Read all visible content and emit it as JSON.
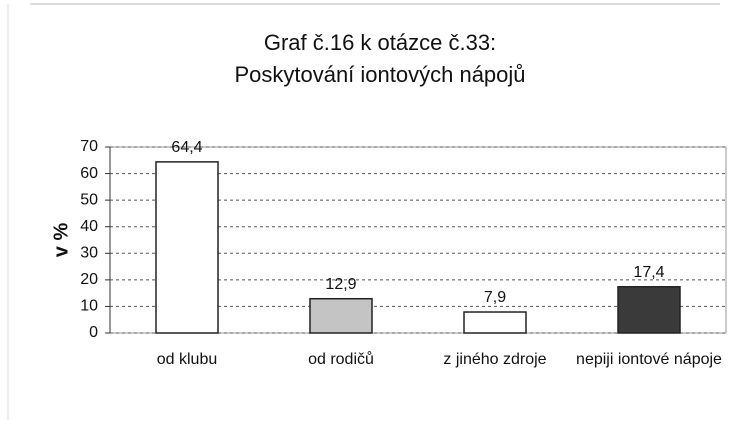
{
  "chart_data": {
    "type": "bar",
    "title": [
      "Graf č.16 k otázce č.33:",
      "Poskytování iontových nápojů"
    ],
    "y_label": "v %",
    "categories": [
      "od klubu",
      "od rodičů",
      "z jiného zdroje",
      "nepiji iontové nápoje"
    ],
    "values": [
      64.4,
      12.9,
      7.9,
      17.4
    ],
    "value_labels": [
      "64,4",
      "12,9",
      "7,9",
      "17,4"
    ],
    "colors": [
      "#ffffff",
      "#c4c4c4",
      "#ffffff",
      "#3a3a3a"
    ],
    "ylim": [
      0,
      70
    ],
    "yticks": [
      0,
      10,
      20,
      30,
      40,
      50,
      60,
      70
    ],
    "grid": true
  }
}
